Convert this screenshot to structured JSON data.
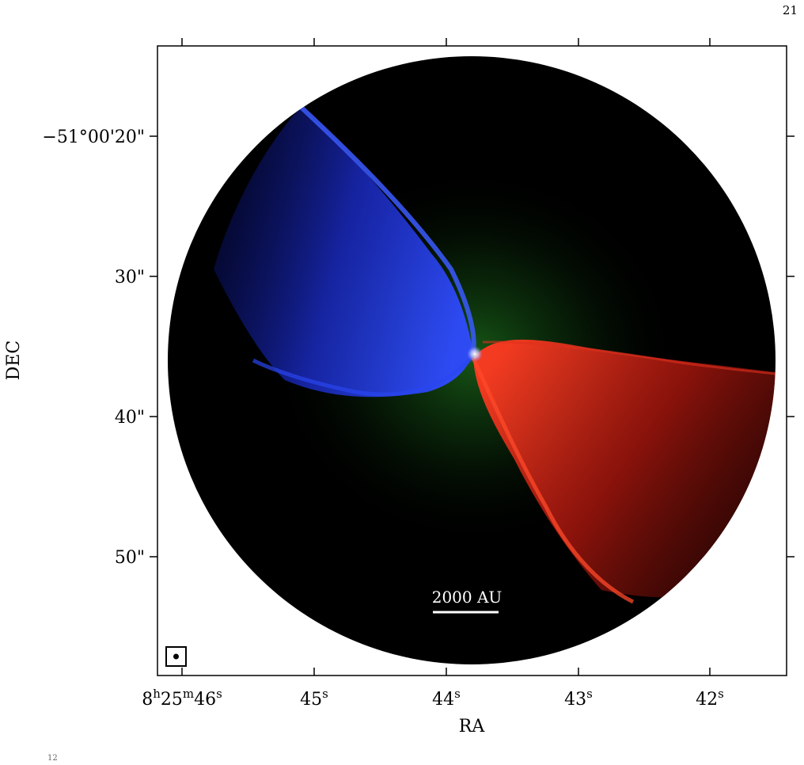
{
  "page_number": "21",
  "figure": {
    "x_axis": {
      "label": "RA",
      "ticks": [
        {
          "h": "8",
          "m": "25",
          "s": "46",
          "full": true
        },
        {
          "s": "45"
        },
        {
          "s": "44"
        },
        {
          "s": "43"
        },
        {
          "s": "42"
        }
      ]
    },
    "y_axis": {
      "label": "DEC",
      "ticks": [
        "−51°00'20\"",
        "30\"",
        "40\"",
        "50\""
      ]
    },
    "scale_bar": {
      "label": "2000 AU"
    },
    "beam": {
      "marker": "beam-ellipse"
    },
    "colors": {
      "background": "#000000",
      "blue_lobe": "#1f3cff",
      "red_lobe": "#ff2a1a",
      "green_emission": "#1f8a1f",
      "frame": "#000000"
    }
  },
  "footer_fragment": "12"
}
